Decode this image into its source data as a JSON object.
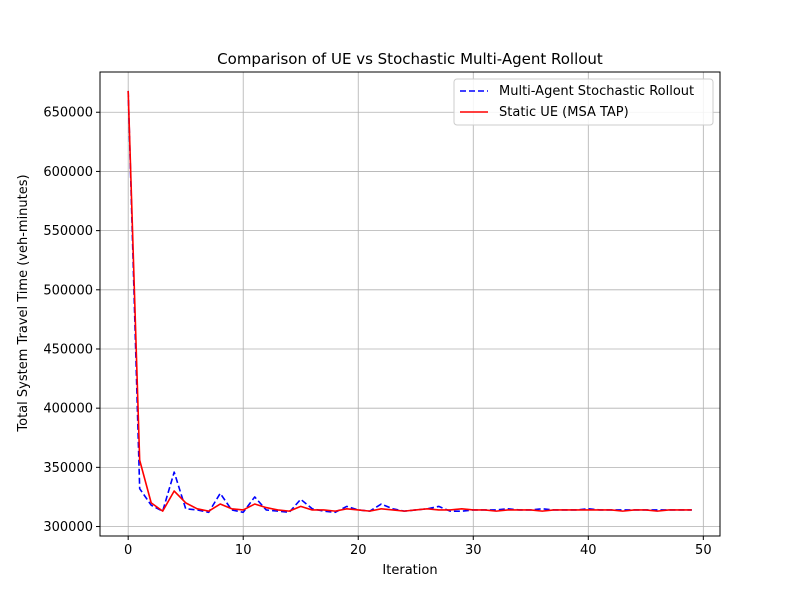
{
  "chart_data": {
    "type": "line",
    "title": "Comparison of UE vs Stochastic Multi-Agent Rollout",
    "xlabel": "Iteration",
    "ylabel": "Total System Travel Time (veh-minutes)",
    "xlim": [
      -2.45,
      51.45
    ],
    "ylim": [
      292000,
      684000
    ],
    "xticks": [
      0,
      10,
      20,
      30,
      40,
      50
    ],
    "yticks": [
      300000,
      350000,
      400000,
      450000,
      500000,
      550000,
      600000,
      650000
    ],
    "grid": true,
    "legend_position": "top-right",
    "x": [
      0,
      1,
      2,
      3,
      4,
      5,
      6,
      7,
      8,
      9,
      10,
      11,
      12,
      13,
      14,
      15,
      16,
      17,
      18,
      19,
      20,
      21,
      22,
      23,
      24,
      25,
      26,
      27,
      28,
      29,
      30,
      31,
      32,
      33,
      34,
      35,
      36,
      37,
      38,
      39,
      40,
      41,
      42,
      43,
      44,
      45,
      46,
      47,
      48,
      49
    ],
    "series": [
      {
        "name": "Multi-Agent Stochastic Rollout",
        "color": "#0000ff",
        "dash": true,
        "values": [
          668000,
          332000,
          318000,
          313000,
          346000,
          315000,
          314000,
          312000,
          328000,
          314000,
          312000,
          325000,
          314000,
          313000,
          312000,
          323000,
          315000,
          313000,
          312000,
          317000,
          314000,
          313000,
          319000,
          315000,
          313000,
          314000,
          315000,
          317000,
          313000,
          313000,
          314000,
          314000,
          314000,
          315000,
          314000,
          314000,
          315000,
          314000,
          314000,
          314000,
          315000,
          314000,
          314000,
          314000,
          314000,
          314000,
          314000,
          314000,
          314000,
          314000
        ]
      },
      {
        "name": "Static UE (MSA TAP)",
        "color": "#ff0000",
        "dash": false,
        "values": [
          668000,
          356000,
          320000,
          313000,
          330000,
          320000,
          315000,
          313000,
          319000,
          315000,
          314000,
          319000,
          316000,
          314000,
          313000,
          317000,
          314000,
          314000,
          313000,
          315000,
          314000,
          313000,
          315000,
          314000,
          313000,
          314000,
          315000,
          314000,
          314000,
          315000,
          314000,
          314000,
          313000,
          314000,
          314000,
          314000,
          313000,
          314000,
          314000,
          314000,
          314000,
          314000,
          314000,
          313000,
          314000,
          314000,
          313000,
          314000,
          314000,
          314000
        ]
      }
    ]
  }
}
